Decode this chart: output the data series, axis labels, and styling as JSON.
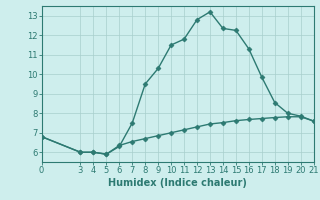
{
  "xlabel": "Humidex (Indice chaleur)",
  "background_color": "#ceeeed",
  "line_color": "#2d7a72",
  "grid_color": "#a8cfcc",
  "grid_color_minor": "#c8e6e4",
  "xlim": [
    0,
    21
  ],
  "ylim": [
    5.5,
    13.5
  ],
  "xticks": [
    0,
    3,
    4,
    5,
    6,
    7,
    8,
    9,
    10,
    11,
    12,
    13,
    14,
    15,
    16,
    17,
    18,
    19,
    20,
    21
  ],
  "yticks": [
    6,
    7,
    8,
    9,
    10,
    11,
    12,
    13
  ],
  "series1_x": [
    0,
    3,
    4,
    5,
    6,
    7,
    8,
    9,
    10,
    11,
    12,
    13,
    14,
    15,
    16,
    17,
    18,
    19,
    20,
    21
  ],
  "series1_y": [
    6.8,
    6.0,
    6.0,
    5.9,
    6.3,
    7.5,
    9.5,
    10.3,
    11.5,
    11.8,
    12.8,
    13.2,
    12.35,
    12.25,
    11.3,
    9.85,
    8.55,
    8.0,
    7.85,
    7.6
  ],
  "series2_x": [
    0,
    3,
    4,
    5,
    6,
    7,
    8,
    9,
    10,
    11,
    12,
    13,
    14,
    15,
    16,
    17,
    18,
    19,
    20,
    21
  ],
  "series2_y": [
    6.8,
    6.0,
    6.0,
    5.9,
    6.35,
    6.55,
    6.7,
    6.85,
    7.0,
    7.15,
    7.3,
    7.45,
    7.52,
    7.62,
    7.68,
    7.73,
    7.78,
    7.82,
    7.82,
    7.6
  ],
  "marker": "D",
  "marker_size": 2.5,
  "linewidth": 1.0,
  "xlabel_fontsize": 7,
  "tick_fontsize": 6
}
